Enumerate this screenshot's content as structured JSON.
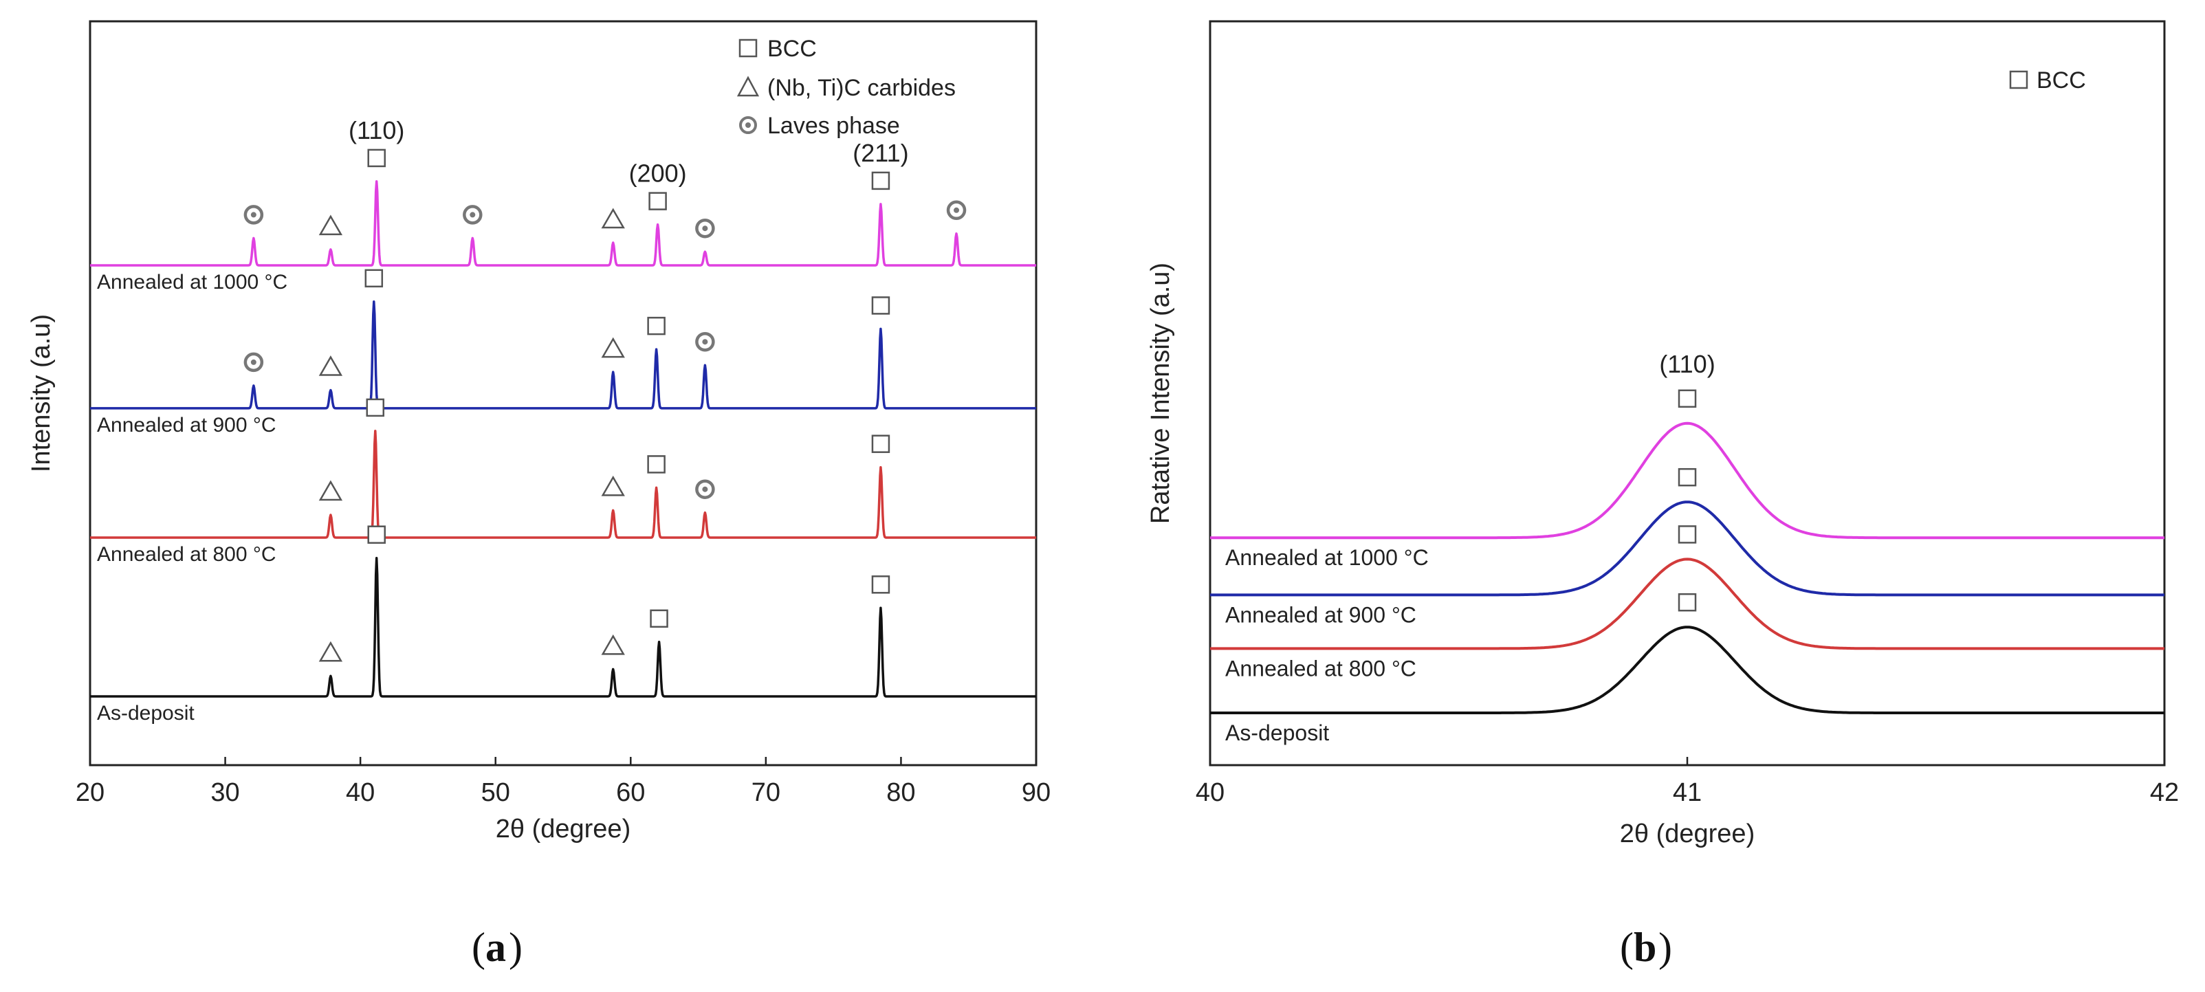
{
  "figure": {
    "panel_a_caption": "a",
    "panel_b_caption": "b"
  },
  "chart_data": [
    {
      "id": "panel_a",
      "type": "line",
      "xlabel": "2θ (degree)",
      "ylabel": "Intensity (a.u)",
      "xlim": [
        20,
        90
      ],
      "xticks": [
        20,
        30,
        40,
        50,
        60,
        70,
        80,
        90
      ],
      "xtick_labels": [
        "20",
        "30",
        "40",
        "50",
        "60",
        "70",
        "80",
        "90"
      ],
      "legend": [
        {
          "marker": "square",
          "label": "BCC"
        },
        {
          "marker": "triangle",
          "label": "(Nb, Ti)C carbides"
        },
        {
          "marker": "bullseye",
          "label": "Laves phase"
        }
      ],
      "hkl_labels": [
        {
          "text": "(110)",
          "x": 41.2
        },
        {
          "text": "(200)",
          "x": 62.0
        },
        {
          "text": "(211)",
          "x": 78.5
        }
      ],
      "series": [
        {
          "name": "As-deposit",
          "color": "#111111",
          "baseline": 0,
          "peaks": [
            {
              "x": 37.8,
              "h": 0.9,
              "phase": "triangle"
            },
            {
              "x": 41.2,
              "h": 6.1,
              "phase": "square"
            },
            {
              "x": 58.7,
              "h": 1.2,
              "phase": "triangle"
            },
            {
              "x": 62.1,
              "h": 2.4,
              "phase": "square"
            },
            {
              "x": 78.5,
              "h": 3.9,
              "phase": "square"
            }
          ]
        },
        {
          "name": "Annealed at 800 °C",
          "color": "#d23a3a",
          "baseline": 7,
          "peaks": [
            {
              "x": 37.8,
              "h": 1.0,
              "phase": "triangle"
            },
            {
              "x": 41.1,
              "h": 4.7,
              "phase": "square"
            },
            {
              "x": 58.7,
              "h": 1.2,
              "phase": "triangle"
            },
            {
              "x": 61.9,
              "h": 2.2,
              "phase": "square"
            },
            {
              "x": 65.5,
              "h": 1.1,
              "phase": "bullseye"
            },
            {
              "x": 78.5,
              "h": 3.1,
              "phase": "square"
            }
          ]
        },
        {
          "name": "Annealed at 900 °C",
          "color": "#1f2aa8",
          "baseline": 12.7,
          "peaks": [
            {
              "x": 32.1,
              "h": 1.0,
              "phase": "bullseye"
            },
            {
              "x": 37.8,
              "h": 0.8,
              "phase": "triangle"
            },
            {
              "x": 41.0,
              "h": 4.7,
              "phase": "square"
            },
            {
              "x": 58.7,
              "h": 1.6,
              "phase": "triangle"
            },
            {
              "x": 61.9,
              "h": 2.6,
              "phase": "square"
            },
            {
              "x": 65.5,
              "h": 1.9,
              "phase": "bullseye"
            },
            {
              "x": 78.5,
              "h": 3.5,
              "phase": "square"
            }
          ]
        },
        {
          "name": "Annealed at 1000 °C",
          "color": "#e040e0",
          "baseline": 19,
          "peaks": [
            {
              "x": 32.1,
              "h": 1.2,
              "phase": "bullseye"
            },
            {
              "x": 37.8,
              "h": 0.7,
              "phase": "triangle"
            },
            {
              "x": 41.2,
              "h": 3.7,
              "phase": "square"
            },
            {
              "x": 48.3,
              "h": 1.2,
              "phase": "bullseye"
            },
            {
              "x": 58.7,
              "h": 1.0,
              "phase": "triangle"
            },
            {
              "x": 62.0,
              "h": 1.8,
              "phase": "square"
            },
            {
              "x": 65.5,
              "h": 0.6,
              "phase": "bullseye"
            },
            {
              "x": 78.5,
              "h": 2.7,
              "phase": "square"
            },
            {
              "x": 84.1,
              "h": 1.4,
              "phase": "bullseye"
            }
          ]
        }
      ]
    },
    {
      "id": "panel_b",
      "type": "line",
      "xlabel": "2θ (degree)",
      "ylabel": "Ratative Intensity (a.u)",
      "xlim": [
        40,
        42
      ],
      "xticks": [
        40,
        41,
        42
      ],
      "xtick_labels": [
        "40",
        "41",
        "42"
      ],
      "legend": [
        {
          "marker": "square",
          "label": "BCC"
        }
      ],
      "hkl_labels": [
        {
          "text": "(110)",
          "x": 41.0
        }
      ],
      "series": [
        {
          "name": "As-deposit",
          "color": "#111111",
          "baseline": 0,
          "peak_x": 41.0,
          "peak_h": 12,
          "phase": "square"
        },
        {
          "name": "Annealed at 800 °C",
          "color": "#d23a3a",
          "baseline": 9,
          "peak_x": 41.0,
          "peak_h": 12.5,
          "phase": "square"
        },
        {
          "name": "Annealed at 900 °C",
          "color": "#1f2aa8",
          "baseline": 16.5,
          "peak_x": 41.0,
          "peak_h": 13,
          "phase": "square"
        },
        {
          "name": "Annealed at 1000 °C",
          "color": "#e040e0",
          "baseline": 24.5,
          "peak_x": 41.0,
          "peak_h": 16,
          "phase": "square"
        }
      ]
    }
  ]
}
